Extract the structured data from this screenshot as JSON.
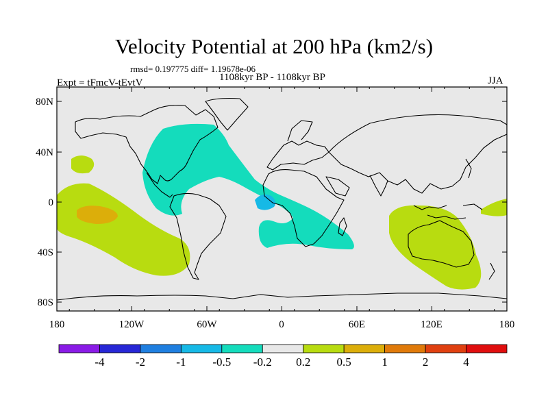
{
  "title": "Velocity Potential at 200 hPa (km2/s)",
  "stats": "rmsd= 0.197775 diff= 1.19678e-06",
  "period": "1108kyr BP - 1108kyr BP",
  "experiment": "Expt = tFmcV-tEvtV",
  "season": "JJA",
  "lat_ticks": [
    "80N",
    "40N",
    "0",
    "40S",
    "80S"
  ],
  "lon_ticks": [
    "180",
    "120W",
    "60W",
    "0",
    "60E",
    "120E",
    "180"
  ],
  "colorbar": {
    "labels": [
      "-4",
      "-2",
      "-1",
      "-0.5",
      "-0.2",
      "0.2",
      "0.5",
      "1",
      "2",
      "4"
    ],
    "colors": [
      "#8a1be6",
      "#2727d6",
      "#1f7fe0",
      "#16b9e6",
      "#14dcbc",
      "#e8e8e8",
      "#b8dc10",
      "#dcae0a",
      "#e07a0a",
      "#e04010",
      "#e00e0e"
    ]
  },
  "chart_data": {
    "type": "heatmap",
    "title": "Velocity Potential at 200 hPa (km2/s)",
    "xlim": [
      -180,
      180
    ],
    "ylim": [
      -90,
      90
    ],
    "levels": [
      -4,
      -2,
      -1,
      -0.5,
      -0.2,
      0.2,
      0.5,
      1,
      2,
      4
    ]
  }
}
